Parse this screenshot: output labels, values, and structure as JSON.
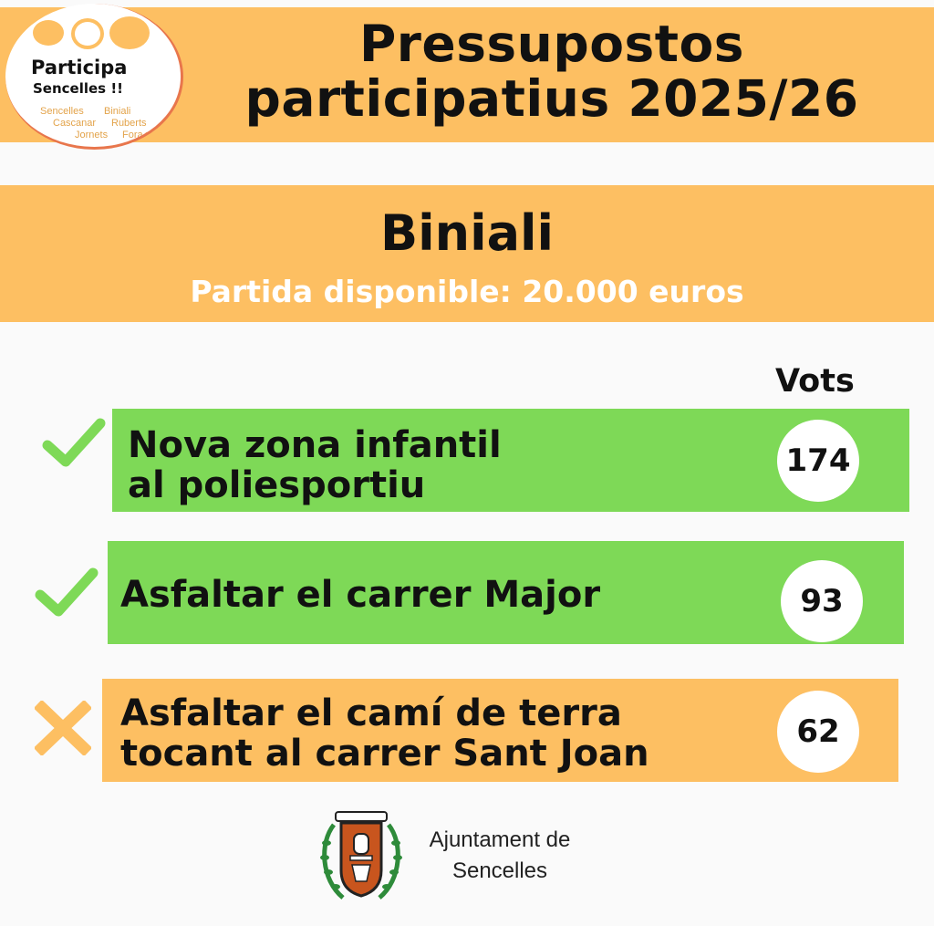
{
  "header": {
    "title_line1": "Pressupostos",
    "title_line2": "participatius 2025/26",
    "brand_color": "#fdbf62"
  },
  "logo": {
    "name": "Participa",
    "subtitle": "Sencelles !!",
    "places": [
      "Sencelles",
      "Biniali",
      "Cascanar",
      "Ruberts",
      "Jornets",
      "Fora vila"
    ]
  },
  "district": {
    "name": "Biniali",
    "budget": "Partida disponible: 20.000 euros"
  },
  "votes_header": "Vots",
  "projects": [
    {
      "line1": "Nova zona infantil",
      "line2": "al poliesportiu",
      "votes": "174",
      "status": "approved",
      "icon": "check-icon",
      "color": "#7ed957"
    },
    {
      "line1": "Asfaltar el carrer Major",
      "line2": "",
      "votes": "93",
      "status": "approved",
      "icon": "check-icon",
      "color": "#7ed957"
    },
    {
      "line1": "Asfaltar el camí de terra",
      "line2": "tocant al carrer Sant Joan",
      "votes": "62",
      "status": "rejected",
      "icon": "cross-icon",
      "color": "#fdbf62"
    }
  ],
  "footer": {
    "line1": "Ajuntament de",
    "line2": "Sencelles"
  }
}
